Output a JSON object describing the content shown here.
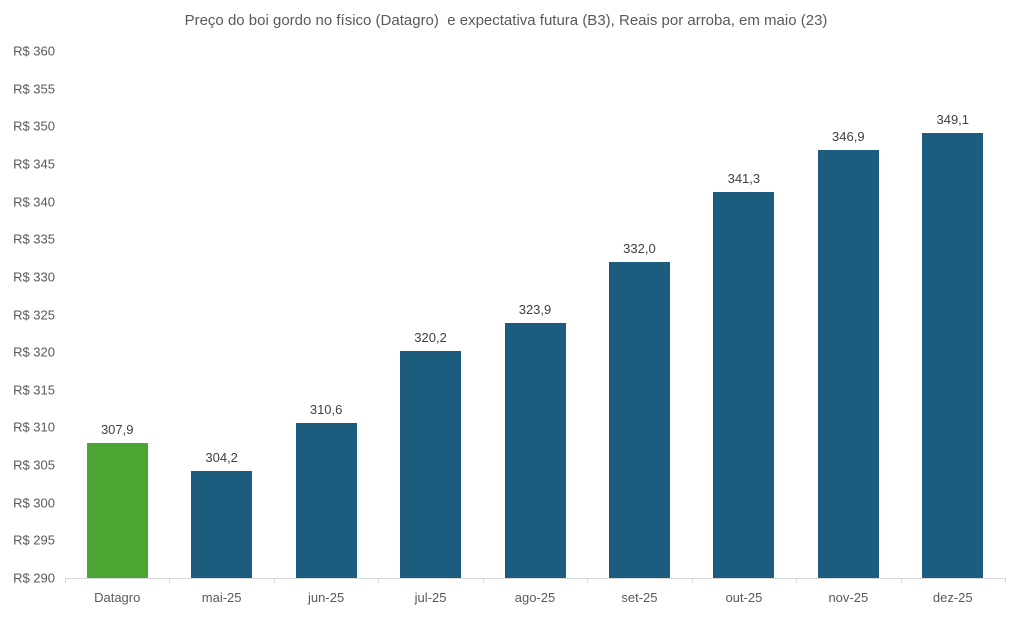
{
  "chart_data": {
    "type": "bar",
    "title": "Preço do boi gordo no físico (Datagro)  e expectativa futura (B3), Reais por arroba, em maio (23)",
    "categories": [
      "Datagro",
      "mai-25",
      "jun-25",
      "jul-25",
      "ago-25",
      "set-25",
      "out-25",
      "nov-25",
      "dez-25"
    ],
    "values": [
      307.9,
      304.2,
      310.6,
      320.2,
      323.9,
      332.0,
      341.3,
      346.9,
      349.1
    ],
    "value_labels": [
      "307,9",
      "304,2",
      "310,6",
      "320,2",
      "323,9",
      "332,0",
      "341,3",
      "346,9",
      "349,1"
    ],
    "bar_colors": [
      "#4CA433",
      "#1C5D7F",
      "#1C5D7F",
      "#1C5D7F",
      "#1C5D7F",
      "#1C5D7F",
      "#1C5D7F",
      "#1C5D7F",
      "#1C5D7F"
    ],
    "series_note": "first bar = Datagro physical price (green), remaining bars = B3 futures expectation (blue)",
    "xlabel": "",
    "ylabel": "",
    "ylim": [
      290,
      360
    ],
    "y_tick_step": 5,
    "y_tick_labels": [
      "R$ 290",
      "R$ 295",
      "R$ 300",
      "R$ 305",
      "R$ 310",
      "R$ 315",
      "R$ 320",
      "R$ 325",
      "R$ 330",
      "R$ 335",
      "R$ 340",
      "R$ 345",
      "R$ 350",
      "R$ 355",
      "R$ 360"
    ],
    "grid": false,
    "legend": false,
    "colors": {
      "datagro_green": "#4CA433",
      "futures_blue": "#1C5D7F",
      "axis_line": "#D9D9D9",
      "title_text": "#595959",
      "axis_text": "#595959",
      "value_text": "#404040",
      "background": "#FFFFFF"
    }
  }
}
